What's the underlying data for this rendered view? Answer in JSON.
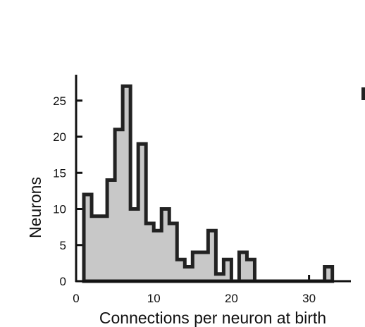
{
  "chart_data": {
    "type": "histogram",
    "title": "",
    "xlabel": "Connections per neuron at birth",
    "ylabel": "Neurons",
    "xlim": [
      0,
      35
    ],
    "ylim": [
      0,
      28
    ],
    "bin_width": 1,
    "bins": [
      {
        "start": 1,
        "count": 12
      },
      {
        "start": 2,
        "count": 9
      },
      {
        "start": 3,
        "count": 9
      },
      {
        "start": 4,
        "count": 14
      },
      {
        "start": 5,
        "count": 21
      },
      {
        "start": 6,
        "count": 27
      },
      {
        "start": 7,
        "count": 10
      },
      {
        "start": 8,
        "count": 19
      },
      {
        "start": 9,
        "count": 8
      },
      {
        "start": 10,
        "count": 7
      },
      {
        "start": 11,
        "count": 10
      },
      {
        "start": 12,
        "count": 8
      },
      {
        "start": 13,
        "count": 3
      },
      {
        "start": 14,
        "count": 2
      },
      {
        "start": 15,
        "count": 4
      },
      {
        "start": 16,
        "count": 4
      },
      {
        "start": 17,
        "count": 7
      },
      {
        "start": 18,
        "count": 1
      },
      {
        "start": 19,
        "count": 3
      },
      {
        "start": 20,
        "count": 0
      },
      {
        "start": 21,
        "count": 4
      },
      {
        "start": 22,
        "count": 3
      },
      {
        "start": 23,
        "count": 0
      },
      {
        "start": 24,
        "count": 0
      },
      {
        "start": 25,
        "count": 0
      },
      {
        "start": 26,
        "count": 0
      },
      {
        "start": 27,
        "count": 0
      },
      {
        "start": 28,
        "count": 0
      },
      {
        "start": 29,
        "count": 0
      },
      {
        "start": 30,
        "count": 0
      },
      {
        "start": 31,
        "count": 0
      },
      {
        "start": 32,
        "count": 2
      }
    ],
    "xticks": [
      0,
      10,
      20,
      30
    ],
    "yticks": [
      0,
      5,
      10,
      15,
      20,
      25
    ],
    "fill_color": "#c8c8c8",
    "edge_color": "#222222",
    "grid": false,
    "legend": "none"
  }
}
